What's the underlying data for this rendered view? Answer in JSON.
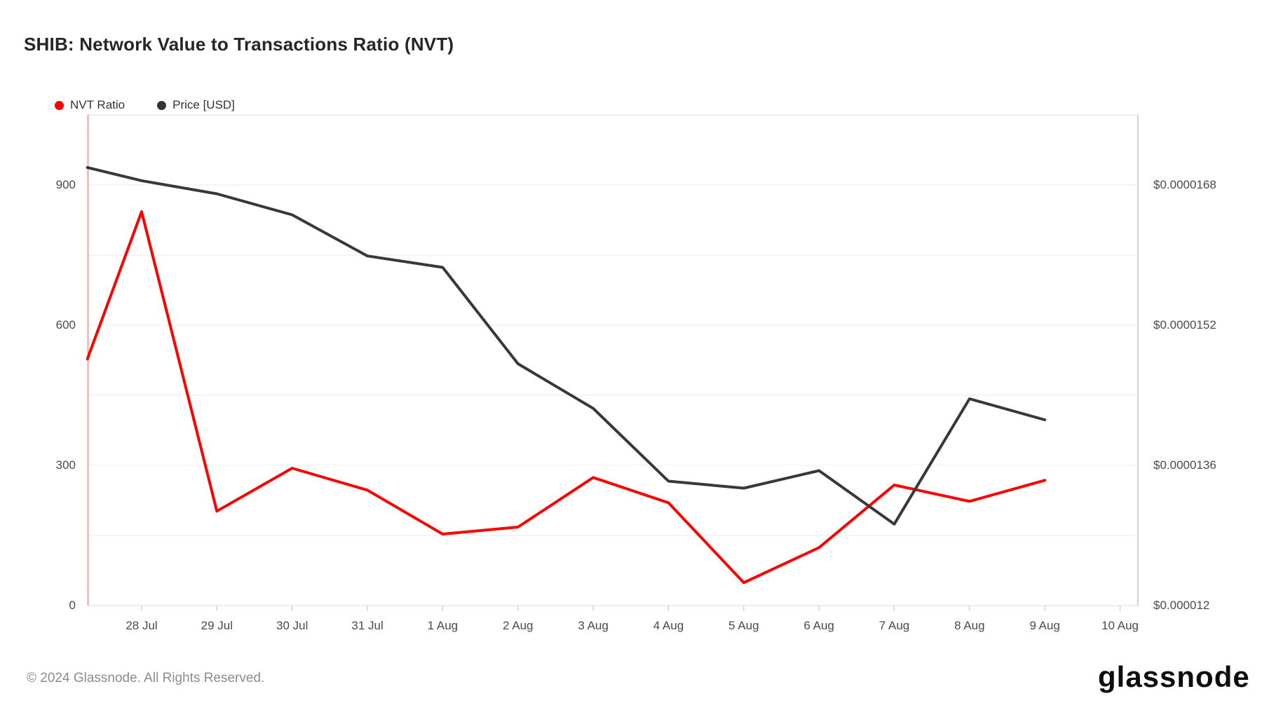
{
  "title": "SHIB: Network Value to Transactions Ratio (NVT)",
  "legend": [
    {
      "label": "NVT Ratio",
      "color": "#fe0000"
    },
    {
      "label": "Price [USD]",
      "color": "#333333"
    }
  ],
  "footer": {
    "copyright": "© 2024 Glassnode. All Rights Reserved.",
    "brand": "glassnode"
  },
  "colors": {
    "nvt_line": "#fe0000",
    "price_line": "#383838",
    "left_axis_line": "#f59f9f",
    "gridline": "#efefef",
    "top_border": "#e8e8e8",
    "bottom_border": "#e0e0e0",
    "right_border": "#c4c4c4",
    "tick_mark": "#cccccc"
  },
  "chart_data": {
    "type": "line",
    "title": "SHIB: Network Value to Transactions Ratio (NVT)",
    "categories": [
      "28 Jul",
      "29 Jul",
      "30 Jul",
      "31 Jul",
      "1 Aug",
      "2 Aug",
      "3 Aug",
      "4 Aug",
      "5 Aug",
      "6 Aug",
      "7 Aug",
      "8 Aug",
      "9 Aug",
      "10 Aug"
    ],
    "grid": true,
    "legend_position": "top-left",
    "left_axis": {
      "title": "NVT Ratio",
      "tick_values": [
        0,
        300,
        600,
        900
      ],
      "tick_labels": [
        "0",
        "300",
        "600",
        "900"
      ],
      "range": [
        0,
        1050
      ],
      "gridline_step": 150
    },
    "right_axis": {
      "title": "Price [USD]",
      "tick_values": [
        1.2e-05,
        1.36e-05,
        1.52e-05,
        1.68e-05
      ],
      "tick_labels": [
        "$0.000012",
        "$0.0000136",
        "$0.0000152",
        "$0.0000168"
      ],
      "range": [
        1.2e-05,
        1.76e-05
      ]
    },
    "series": [
      {
        "name": "NVT Ratio",
        "axis": "left",
        "color": "#fe0000",
        "x": [
          -0.72,
          0,
          1,
          2,
          3,
          4,
          5,
          6,
          7,
          8,
          9,
          10,
          11,
          12
        ],
        "values": [
          528,
          843,
          202,
          294,
          247,
          153,
          168,
          274,
          220,
          49,
          124,
          258,
          223,
          268
        ]
      },
      {
        "name": "Price [USD]",
        "axis": "right",
        "color": "#383838",
        "x": [
          -0.72,
          0,
          1,
          2,
          3,
          4,
          5,
          6,
          7,
          8,
          9,
          10,
          11,
          12
        ],
        "values": [
          1.7e-05,
          1.685e-05,
          1.67e-05,
          1.646e-05,
          1.599e-05,
          1.586e-05,
          1.476e-05,
          1.425e-05,
          1.342e-05,
          1.334e-05,
          1.354e-05,
          1.293e-05,
          1.436e-05,
          1.412e-05
        ]
      }
    ]
  }
}
